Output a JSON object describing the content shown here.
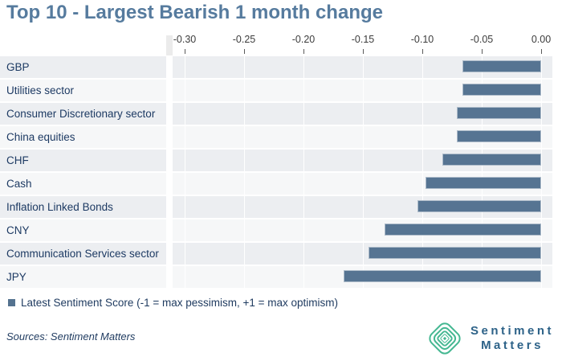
{
  "title": "Top 10 - Largest Bearish 1 month change",
  "chart_data": {
    "type": "bar",
    "orientation": "horizontal",
    "title": "Top 10 - Largest Bearish 1 month change",
    "categories": [
      "GBP",
      "Utilities sector",
      "Consumer Discretionary sector",
      "China equities",
      "CHF",
      "Cash",
      "Inflation Linked Bonds",
      "CNY",
      "Communication Services sector",
      "JPY"
    ],
    "values": [
      -0.066,
      -0.066,
      -0.071,
      -0.071,
      -0.083,
      -0.097,
      -0.104,
      -0.132,
      -0.145,
      -0.166
    ],
    "series_name": "Latest Sentiment Score",
    "xlim": [
      -0.3,
      0.0
    ],
    "x_tick_values": [
      -0.3,
      -0.25,
      -0.2,
      -0.15,
      -0.1,
      -0.05,
      0.0
    ],
    "x_tick_labels": [
      "-0.30",
      "-0.25",
      "-0.20",
      "-0.15",
      "-0.10",
      "-0.05",
      "0.00"
    ],
    "grid": "vertical-white-gridlines-on-striped-rows",
    "legend_position": "bottom-left"
  },
  "legend": {
    "marker": "square",
    "label": "Latest Sentiment Score (-1 = max pessimism, +1 = max optimism)"
  },
  "footer": {
    "sources": "Sources: Sentiment Matters"
  },
  "logo": {
    "icon": "concentric-diamond-icon",
    "text_line1": "Sentiment",
    "text_line2": "Matters"
  },
  "colors": {
    "title": "#567b9e",
    "bar": "#567492",
    "bar_border": "#aebcca",
    "row_stripe_dark": "#eceef1",
    "row_stripe_light": "#f6f7f8",
    "category_text": "#1d3a63",
    "axis_text": "#3c3c3c",
    "legend_marker": "#54728f",
    "legend_text": "#1e3a5f",
    "sources_text": "#1e3a5f",
    "logo_green": "#45b892",
    "logo_text": "#2d6288"
  }
}
